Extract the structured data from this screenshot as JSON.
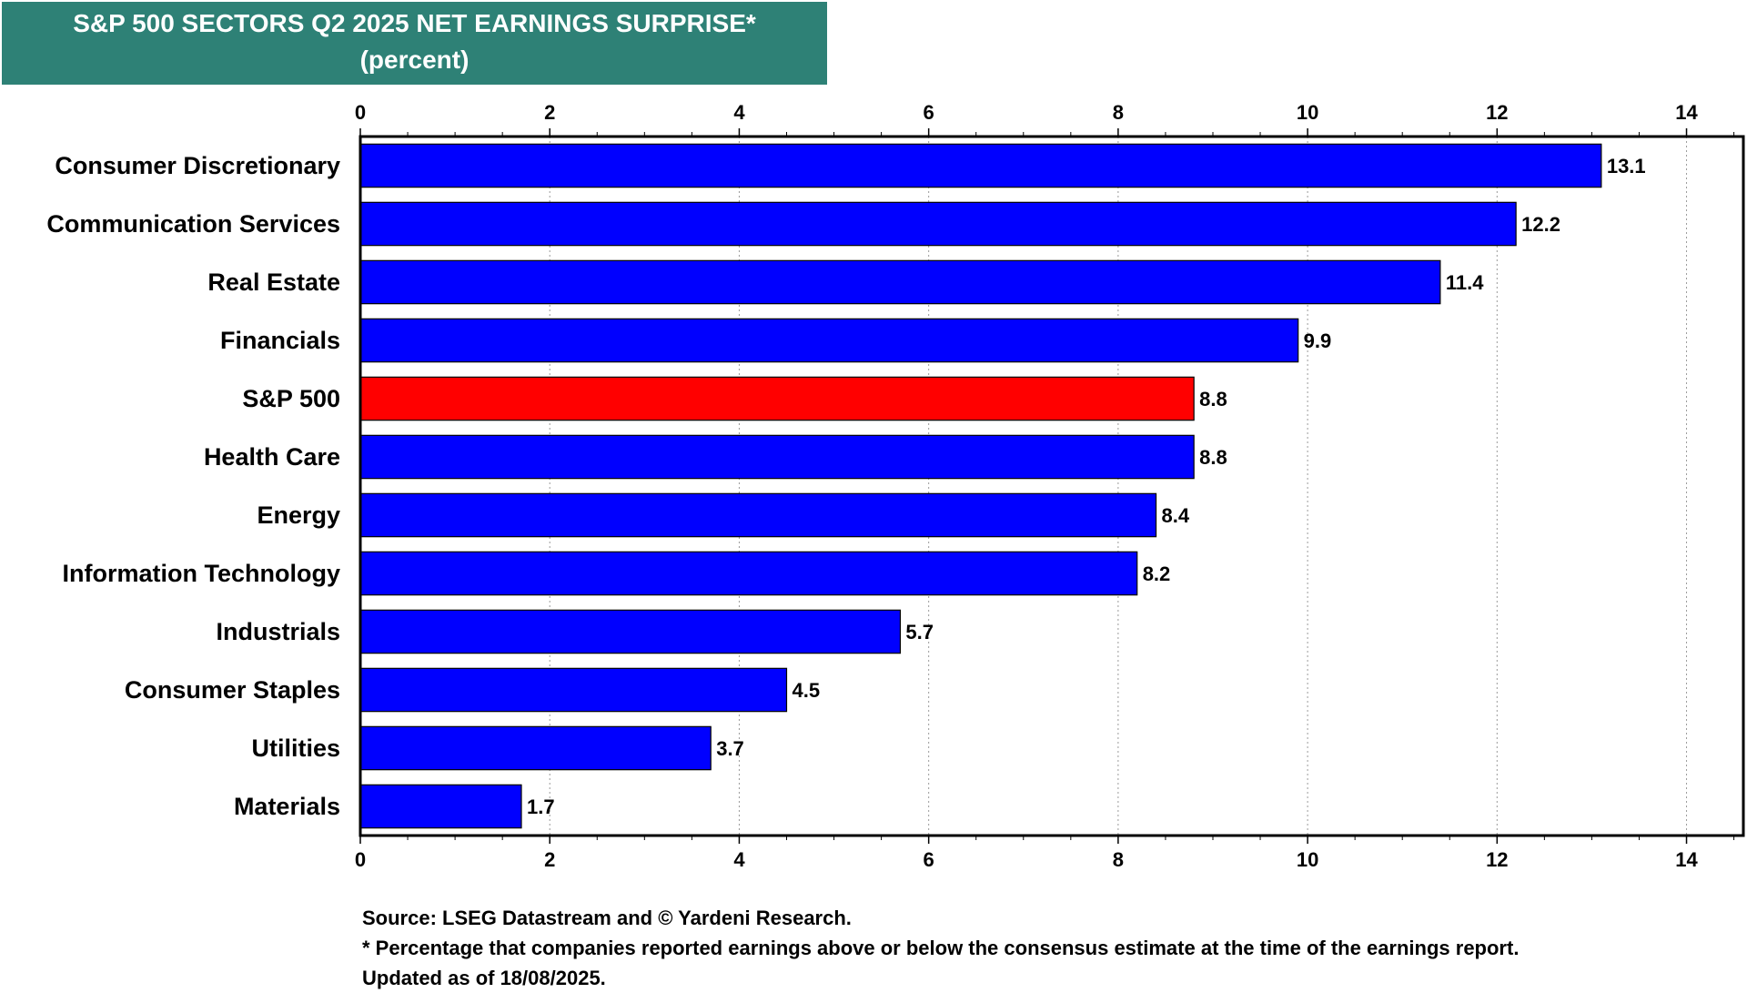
{
  "title": "S&P 500 SECTORS Q2 2025 NET EARNINGS SURPRISE*",
  "subtitle": "(percent)",
  "colors": {
    "title_bg": "#2e8176",
    "bar": "#0000ff",
    "highlight": "#ff0000"
  },
  "chart_data": {
    "type": "bar",
    "orientation": "horizontal",
    "categories": [
      "Consumer Discretionary",
      "Communication Services",
      "Real Estate",
      "Financials",
      "S&P 500",
      "Health Care",
      "Energy",
      "Information Technology",
      "Industrials",
      "Consumer Staples",
      "Utilities",
      "Materials"
    ],
    "values": [
      13.1,
      12.2,
      11.4,
      9.9,
      8.8,
      8.8,
      8.4,
      8.2,
      5.7,
      4.5,
      3.7,
      1.7
    ],
    "value_labels": [
      "13.1",
      "12.2",
      "11.4",
      "9.9",
      "8.8",
      "8.8",
      "8.4",
      "8.2",
      "5.7",
      "4.5",
      "3.7",
      "1.7"
    ],
    "highlight_category": "S&P 500",
    "xlim": [
      0,
      14.6
    ],
    "xticks": [
      0,
      2,
      4,
      6,
      8,
      10,
      12,
      14
    ],
    "x_axis_position": "top and bottom",
    "grid": "vertical dotted"
  },
  "notes": {
    "source": "Source: LSEG Datastream and © Yardeni Research.",
    "footnote": "* Percentage that companies reported earnings above or below the consensus estimate at the time of the earnings report.",
    "updated": "Updated as of 18/08/2025."
  }
}
